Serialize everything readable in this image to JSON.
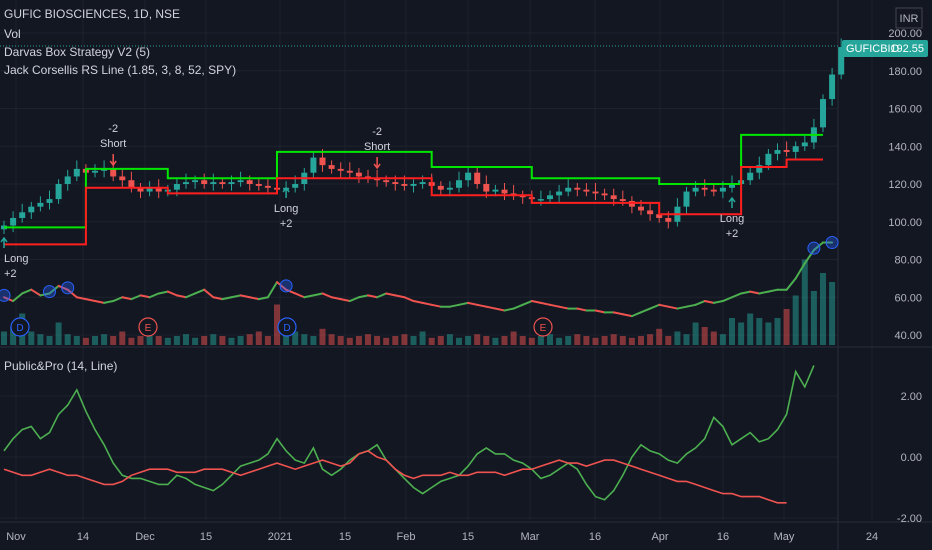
{
  "header": {
    "symbol_line": "GUFIC BIOSCIENCES, 1D, NSE",
    "vol_label": "Vol",
    "study_1": "Darvas Box Strategy V2 (5)",
    "study_2": "Jack Corsellis RS Line (1.85, 3, 8, 52, SPY)",
    "currency": "INR"
  },
  "price_tag": {
    "ticker": "GUFICBIO",
    "price": "192.55",
    "color": "#26a69a"
  },
  "lower_pane": {
    "title": "Public&Pro (14, Line)"
  },
  "annotations": {
    "short": "Short",
    "long": "Long",
    "minus2": "-2",
    "plus2": "+2",
    "dividend": "D",
    "earnings": "E"
  },
  "colors": {
    "background": "#131722",
    "up": "#26a69a",
    "down": "#ef5350",
    "box_top": "#00e600",
    "box_bottom": "#ff1f1f",
    "rs_up": "#4caf50",
    "rs_down": "#ef5350",
    "pp_green": "#4caf50",
    "pp_red": "#ef5350"
  },
  "chart_data": [
    {
      "type": "candlestick",
      "title": "GUFIC BIOSCIENCES, 1D, NSE",
      "ylim": [
        30,
        200
      ],
      "y_ticks": [
        "200.00",
        "180.00",
        "160.00",
        "140.00",
        "120.00",
        "100.00",
        "80.00",
        "60.00",
        "40.00"
      ],
      "x_ticks": [
        "Nov",
        "14",
        "Dec",
        "15",
        "2021",
        "15",
        "Feb",
        "15",
        "Mar",
        "16",
        "Apr",
        "16",
        "May",
        "24"
      ],
      "last_close": 192.55,
      "close_path": [
        98,
        102,
        105,
        108,
        110,
        112,
        120,
        124,
        128,
        126,
        127,
        128,
        124,
        122,
        118,
        116,
        118,
        116,
        117,
        120,
        121,
        122,
        120,
        121,
        120,
        121,
        122,
        120,
        119,
        118,
        117,
        118,
        120,
        126,
        134,
        130,
        128,
        127,
        126,
        124,
        123,
        122,
        121,
        120,
        119,
        120,
        121,
        119,
        117,
        118,
        122,
        126,
        120,
        116,
        117,
        115,
        114,
        113,
        112,
        112,
        114,
        116,
        118,
        117,
        116,
        115,
        114,
        112,
        111,
        108,
        106,
        104,
        102,
        100,
        108,
        116,
        118,
        117,
        116,
        118,
        120,
        122,
        126,
        130,
        136,
        138,
        137,
        140,
        142,
        150,
        165,
        178,
        192.55
      ],
      "darvas_top": [
        [
          0,
          97
        ],
        [
          9,
          97
        ],
        [
          9,
          128
        ],
        [
          18,
          128
        ],
        [
          18,
          123
        ],
        [
          30,
          123
        ],
        [
          30,
          137
        ],
        [
          47,
          137
        ],
        [
          47,
          129
        ],
        [
          58,
          129
        ],
        [
          58,
          123
        ],
        [
          72,
          123
        ],
        [
          72,
          120
        ],
        [
          81,
          120
        ],
        [
          81,
          146
        ],
        [
          90,
          146
        ]
      ],
      "darvas_bottom": [
        [
          0,
          88
        ],
        [
          9,
          88
        ],
        [
          9,
          118
        ],
        [
          18,
          118
        ],
        [
          18,
          115
        ],
        [
          30,
          115
        ],
        [
          30,
          123
        ],
        [
          47,
          123
        ],
        [
          47,
          114
        ],
        [
          58,
          114
        ],
        [
          58,
          110
        ],
        [
          72,
          110
        ],
        [
          72,
          104
        ],
        [
          81,
          104
        ],
        [
          81,
          129
        ],
        [
          86,
          129
        ],
        [
          86,
          133
        ],
        [
          90,
          133
        ]
      ],
      "signals": [
        {
          "label": "Short",
          "value": "-2",
          "close": 128
        },
        {
          "label": "Short",
          "value": "-2",
          "close": 123
        },
        {
          "label": "Long",
          "value": "+2",
          "close": 106
        },
        {
          "label": "Long",
          "value": "+2",
          "close": 114
        }
      ],
      "rs_line": [
        60,
        58,
        62,
        64,
        61,
        62,
        66,
        64,
        60,
        59,
        58,
        57,
        58,
        60,
        59,
        61,
        60,
        62,
        63,
        61,
        60,
        62,
        64,
        60,
        59,
        60,
        61,
        60,
        59,
        60,
        68,
        64,
        62,
        60,
        61,
        62,
        60,
        59,
        58,
        60,
        61,
        60,
        62,
        61,
        60,
        58,
        57,
        56,
        55,
        55,
        56,
        57,
        56,
        55,
        54,
        53,
        54,
        56,
        58,
        57,
        56,
        55,
        54,
        54,
        53,
        53,
        52,
        52,
        51,
        50,
        52,
        54,
        56,
        55,
        54,
        55,
        56,
        58,
        57,
        58,
        60,
        62,
        63,
        62,
        63,
        64,
        64,
        70,
        78,
        85,
        89,
        89
      ],
      "volume_relative": [
        0.15,
        0.2,
        0.35,
        0.15,
        0.12,
        0.1,
        0.25,
        0.12,
        0.1,
        0.08,
        0.1,
        0.12,
        0.1,
        0.15,
        0.08,
        0.1,
        0.12,
        0.1,
        0.08,
        0.1,
        0.12,
        0.08,
        0.1,
        0.12,
        0.1,
        0.08,
        0.1,
        0.12,
        0.15,
        0.1,
        0.45,
        0.2,
        0.15,
        0.12,
        0.1,
        0.18,
        0.12,
        0.1,
        0.08,
        0.1,
        0.12,
        0.1,
        0.08,
        0.1,
        0.12,
        0.1,
        0.15,
        0.08,
        0.1,
        0.12,
        0.08,
        0.1,
        0.12,
        0.1,
        0.08,
        0.1,
        0.15,
        0.1,
        0.08,
        0.1,
        0.12,
        0.08,
        0.1,
        0.12,
        0.1,
        0.08,
        0.1,
        0.12,
        0.1,
        0.08,
        0.1,
        0.12,
        0.18,
        0.1,
        0.15,
        0.12,
        0.25,
        0.2,
        0.15,
        0.12,
        0.3,
        0.25,
        0.35,
        0.3,
        0.25,
        0.3,
        0.4,
        0.55,
        0.95,
        0.6,
        0.8,
        0.7
      ]
    },
    {
      "type": "line",
      "title": "Public&Pro (14, Line)",
      "ylim": [
        -2.2,
        3.4
      ],
      "y_ticks": [
        "2.00",
        "0.00",
        "-2.00"
      ],
      "series": [
        {
          "color": "green",
          "values": [
            0.2,
            0.6,
            0.9,
            1.0,
            0.6,
            0.8,
            1.4,
            1.7,
            2.2,
            1.5,
            0.9,
            0.4,
            -0.2,
            -0.6,
            -0.7,
            -0.7,
            -0.8,
            -0.9,
            -0.9,
            -0.6,
            -0.7,
            -0.9,
            -1.0,
            -1.1,
            -0.9,
            -0.6,
            -0.3,
            -0.2,
            -0.1,
            0.1,
            0.6,
            0.2,
            -0.1,
            -0.2,
            0.3,
            -0.4,
            -0.6,
            -0.4,
            -0.1,
            0.1,
            0.2,
            0.4,
            -0.1,
            -0.4,
            -0.7,
            -1.0,
            -1.2,
            -1.0,
            -0.8,
            -0.7,
            -0.6,
            -0.3,
            0.1,
            0.3,
            0.1,
            0.1,
            -0.1,
            -0.2,
            -0.4,
            -0.7,
            -0.6,
            -0.4,
            -0.2,
            -0.4,
            -0.9,
            -1.3,
            -1.4,
            -1.1,
            -0.6,
            0.0,
            0.4,
            0.2,
            0.1,
            -0.1,
            -0.2,
            0.1,
            0.3,
            0.6,
            1.3,
            1.0,
            0.4,
            0.6,
            0.8,
            0.5,
            0.6,
            0.9,
            1.4,
            2.8,
            2.3,
            3.0
          ]
        },
        {
          "color": "red",
          "values": [
            -0.4,
            -0.5,
            -0.6,
            -0.6,
            -0.5,
            -0.4,
            -0.5,
            -0.6,
            -0.6,
            -0.7,
            -0.8,
            -0.9,
            -0.9,
            -0.8,
            -0.6,
            -0.5,
            -0.4,
            -0.4,
            -0.4,
            -0.5,
            -0.5,
            -0.5,
            -0.4,
            -0.4,
            -0.4,
            -0.5,
            -0.6,
            -0.5,
            -0.4,
            -0.3,
            -0.2,
            -0.3,
            -0.4,
            -0.3,
            -0.2,
            -0.1,
            -0.2,
            -0.3,
            -0.2,
            0.1,
            0.2,
            0.0,
            -0.1,
            -0.4,
            -0.6,
            -0.7,
            -0.6,
            -0.6,
            -0.6,
            -0.5,
            -0.6,
            -0.6,
            -0.5,
            -0.5,
            -0.5,
            -0.6,
            -0.5,
            -0.4,
            -0.4,
            -0.3,
            -0.2,
            -0.1,
            -0.2,
            -0.2,
            -0.3,
            -0.2,
            -0.1,
            -0.1,
            -0.2,
            -0.3,
            -0.4,
            -0.5,
            -0.6,
            -0.7,
            -0.8,
            -0.8,
            -0.9,
            -1.0,
            -1.1,
            -1.2,
            -1.2,
            -1.3,
            -1.3,
            -1.3,
            -1.4,
            -1.5,
            -1.5
          ]
        }
      ]
    }
  ]
}
